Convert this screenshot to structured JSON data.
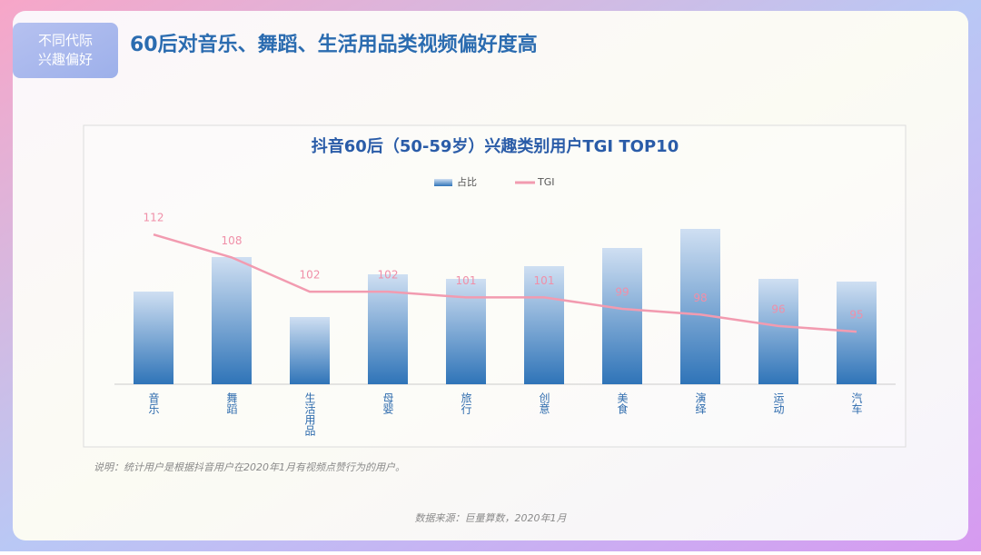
{
  "tag": [
    "不同代际",
    "兴趣偏好"
  ],
  "headline": "60后对音乐、舞蹈、生活用品类视频偏好度高",
  "chart_data": {
    "type": "bar-line",
    "title": "抖音60后（50-59岁）兴趣类别用户TGI TOP10",
    "categories": [
      "音乐",
      "舞蹈",
      "生活用品",
      "母婴",
      "旅行",
      "创意",
      "美食",
      "演绎",
      "运动",
      "汽车"
    ],
    "series": [
      {
        "name": "占比",
        "type": "bar",
        "color": "#2f74b8",
        "values": [
          10.2,
          14.0,
          7.4,
          12.1,
          11.6,
          13.0,
          15.0,
          17.1,
          11.6,
          11.3
        ]
      },
      {
        "name": "TGI",
        "type": "line",
        "axis": "y2",
        "color": "#f29bb0",
        "values": [
          112,
          108,
          102,
          102,
          101,
          101,
          99,
          98,
          96,
          95
        ]
      }
    ],
    "ylim": [
      0,
      20
    ],
    "y2lim": [
      85.8,
      117.6
    ],
    "legend": "top"
  },
  "note": "说明：统计用户是根据抖音用户在2020年1月有视频点赞行为的用户。",
  "source": "数据来源：巨量算数，2020年1月"
}
